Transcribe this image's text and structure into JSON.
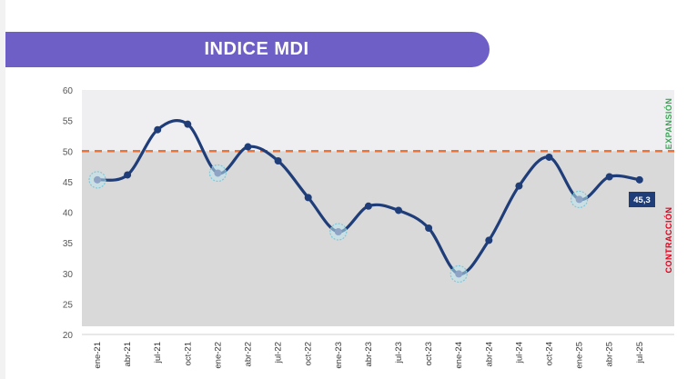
{
  "header": {
    "title": "INDICE MDI"
  },
  "chart_data": {
    "type": "line",
    "title": "INDICE MDI",
    "categories": [
      "ene-21",
      "abr-21",
      "jul-21",
      "oct-21",
      "ene-22",
      "abr-22",
      "jul-22",
      "oct-22",
      "ene-23",
      "abr-23",
      "jul-23",
      "oct-23",
      "ene-24",
      "abr-24",
      "jul-24",
      "oct-24",
      "ene-25",
      "abr-25",
      "jul-25"
    ],
    "series": [
      {
        "values": [
          45.3,
          46.1,
          53.5,
          54.4,
          46.4,
          50.7,
          48.4,
          42.4,
          36.8,
          41.0,
          40.3,
          37.4,
          29.9,
          35.4,
          44.3,
          49.0,
          42.1,
          45.8,
          45.3
        ]
      }
    ],
    "highlighted_points": [
      "ene-21",
      "ene-22",
      "ene-23",
      "ene-24",
      "ene-25"
    ],
    "last_value_label": "45,3",
    "threshold": 50,
    "region_labels": {
      "above": "EXPANSIÓN",
      "below": "CONTRACCIÓN"
    },
    "y_ticks": [
      20,
      25,
      30,
      35,
      40,
      45,
      50,
      55,
      60
    ],
    "ylim": [
      20,
      60
    ],
    "grid": false,
    "xlabel": "",
    "ylabel": "",
    "colors": {
      "line": "#1f3d78",
      "threshold": "#e8743b",
      "expansion_bg": "#efeff1",
      "contraction_bg": "#d9d9d9",
      "expansion_text": "#3aa655",
      "contraction_text": "#e0001b",
      "label_bg": "#1f3d78",
      "halo": "#7fc8d8",
      "banner": "#6e5fc6"
    }
  }
}
